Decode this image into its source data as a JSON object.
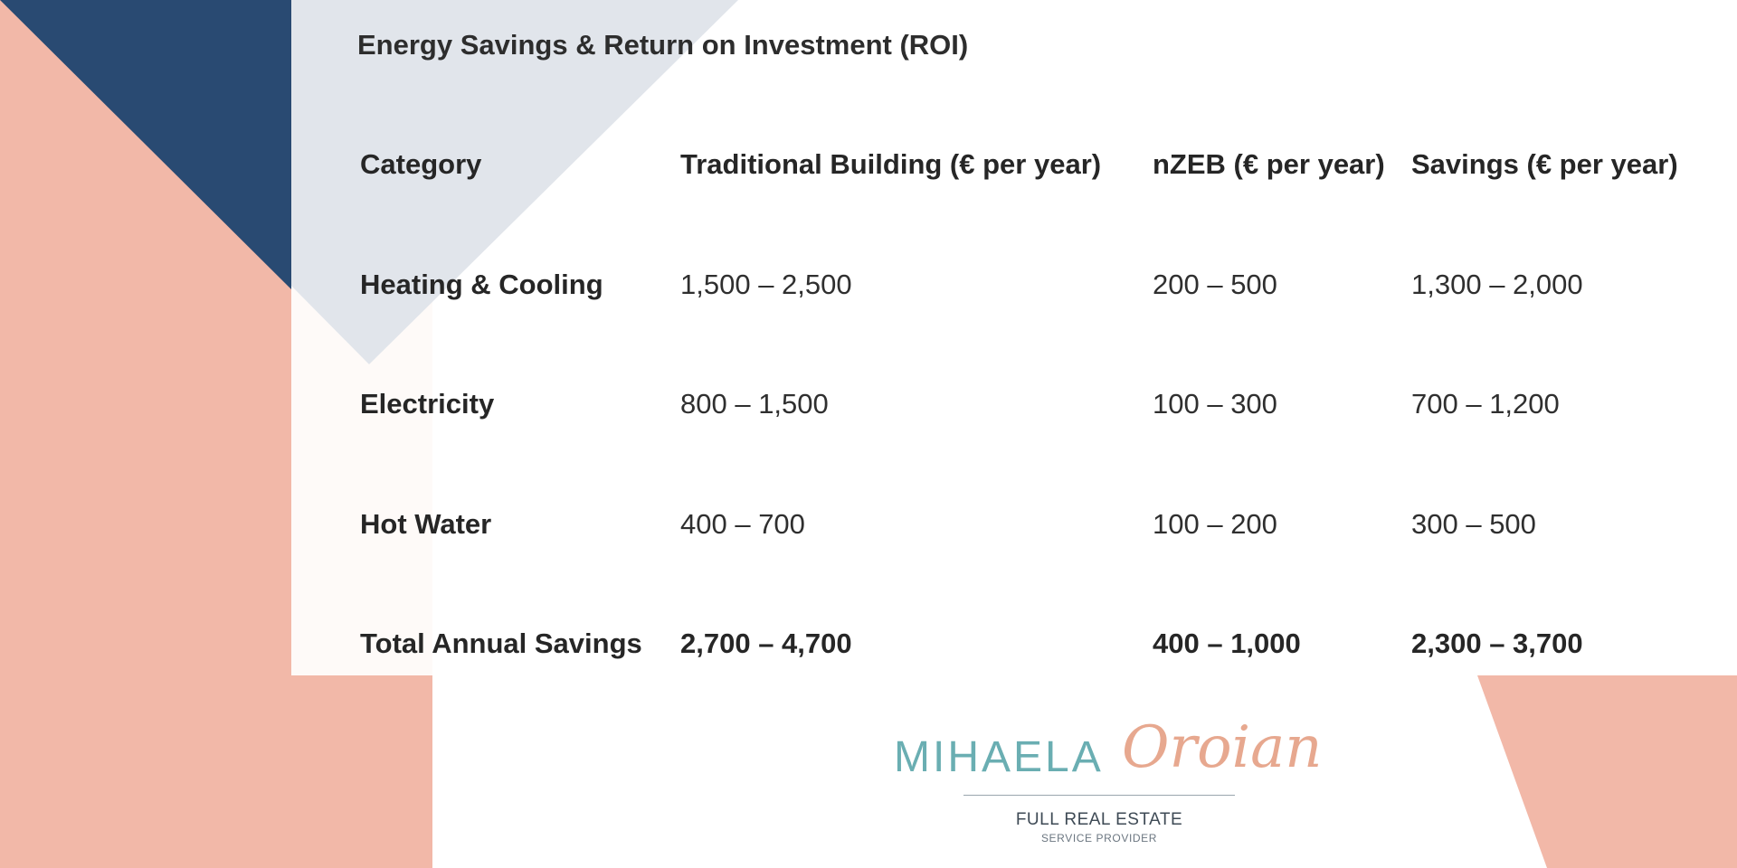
{
  "colors": {
    "navy": "#294a72",
    "salmon": "#f2b8a8",
    "pale_gray": "#e1e5eb",
    "logo_teal": "#6aaeb2",
    "logo_salmon": "#e7a88f"
  },
  "document": {
    "title": "Energy Savings & Return on Investment (ROI)",
    "table": {
      "headers": [
        "Category",
        "Traditional Building (€ per year)",
        "nZEB (€ per year)",
        "Savings (€ per year)"
      ],
      "rows": [
        [
          "Heating & Cooling",
          "1,500 – 2,500",
          "200 – 500",
          "1,300 – 2,000"
        ],
        [
          "Electricity",
          "800 – 1,500",
          "100 – 300",
          "700 – 1,200"
        ],
        [
          "Hot Water",
          "400 – 700",
          "100 – 200",
          "300 – 500"
        ],
        [
          "Total Annual Savings",
          "2,700 – 4,700",
          "400 – 1,000",
          "2,300 – 3,700"
        ]
      ]
    }
  },
  "logo": {
    "first_name": "MIHAELA",
    "signature": "Oroian",
    "tagline": "FULL REAL ESTATE",
    "subtagline": "SERVICE PROVIDER"
  }
}
